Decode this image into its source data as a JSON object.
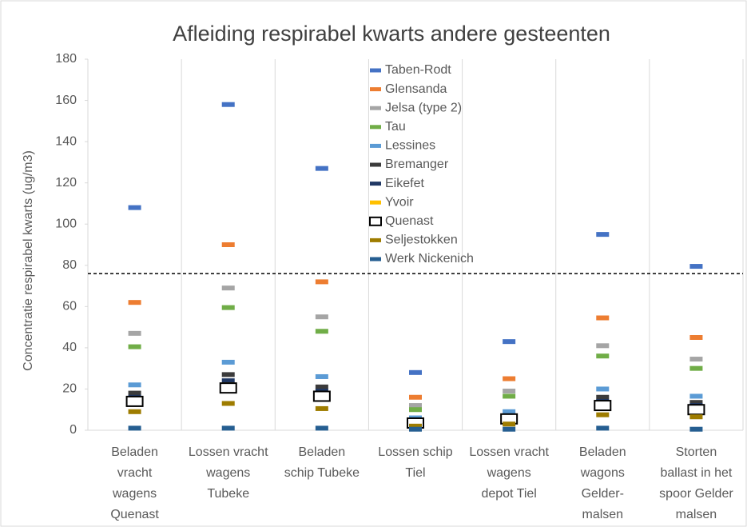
{
  "chart_data": {
    "type": "dot",
    "title": "Afleiding respirabel kwarts andere gesteenten",
    "y_label": "Concentratie respirabel kwarts (ug/m3)",
    "categories": [
      [
        "Beladen",
        "vracht",
        "wagens",
        "Quenast"
      ],
      [
        "Lossen vracht",
        "wagens",
        "Tubeke"
      ],
      [
        "Beladen",
        "schip Tubeke"
      ],
      [
        "Lossen schip",
        "Tiel"
      ],
      [
        "Lossen vracht",
        "wagens",
        "depot Tiel"
      ],
      [
        "Beladen",
        "wagons",
        "Gelder-",
        "malsen"
      ],
      [
        "Storten",
        "ballast in het",
        "spoor Gelder",
        "malsen"
      ]
    ],
    "series": [
      {
        "name": "Taben-Rodt",
        "color": "#4472c4",
        "values": [
          108,
          158,
          127,
          28,
          43,
          95,
          79.5
        ]
      },
      {
        "name": "Glensanda",
        "color": "#ed7d31",
        "values": [
          62,
          90,
          72,
          16,
          25,
          54.5,
          45
        ]
      },
      {
        "name": "Jelsa (type 2)",
        "color": "#a5a5a5",
        "values": [
          47,
          69,
          55,
          12,
          19,
          41,
          34.5
        ]
      },
      {
        "name": "Tau",
        "color": "#70ad47",
        "values": [
          40.5,
          59.5,
          48,
          10,
          16.5,
          36,
          30
        ]
      },
      {
        "name": "Lessines",
        "color": "#5b9bd5",
        "values": [
          22,
          33,
          26,
          6,
          9,
          20,
          16.5
        ]
      },
      {
        "name": "Bremanger",
        "color": "#3b3b3b",
        "values": [
          18,
          27,
          21,
          5,
          7,
          16,
          13.5
        ]
      },
      {
        "name": "Eikefet",
        "color": "#203864",
        "values": [
          16,
          24,
          19,
          4,
          6,
          14,
          12
        ]
      },
      {
        "name": "Yvoir",
        "color": "#ffc000",
        "values": [
          15,
          22,
          17,
          3.5,
          5,
          13,
          10.5
        ]
      },
      {
        "name": "Quenast",
        "color": "#ffffff",
        "edgecolor": "#000000",
        "values": [
          14,
          20.5,
          16.5,
          3.5,
          5.5,
          12,
          10
        ]
      },
      {
        "name": "Seljestokken",
        "color": "#9e7c00",
        "values": [
          9,
          13,
          10.5,
          2,
          3,
          7.5,
          6.5
        ]
      },
      {
        "name": "Werk Nickenich",
        "color": "#255e91",
        "values": [
          1,
          1,
          1,
          0.5,
          0.5,
          1,
          0.5
        ]
      }
    ],
    "hline": 76,
    "ylim": [
      0,
      180
    ],
    "yticks": [
      0,
      20,
      40,
      60,
      80,
      100,
      120,
      140,
      160,
      180
    ],
    "legend": "top"
  }
}
